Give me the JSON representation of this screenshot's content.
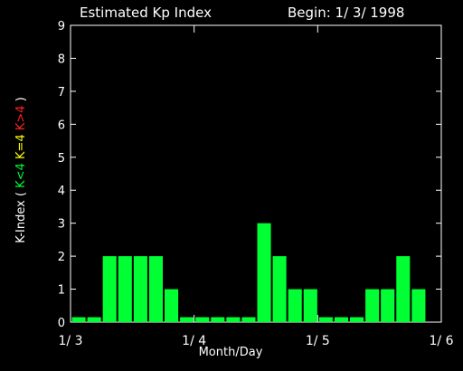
{
  "colors": {
    "background": "#000000",
    "axis": "#ffffff",
    "text": "#ffffff",
    "bar": "#00ff33",
    "legend_low": "#00ff33",
    "legend_mid": "#ffff00",
    "legend_high": "#ff2222"
  },
  "chart_data": {
    "type": "bar",
    "title": "Estimated Kp Index",
    "subtitle": "Begin: 1/ 3/ 1998",
    "xlabel": "Month/Day",
    "ylabel": {
      "prefix": "K-Index (",
      "low": "K<4",
      "mid": "K=4",
      "high": "K>4",
      "suffix": ")"
    },
    "ylim": [
      0,
      9
    ],
    "yticks": [
      "0",
      "1",
      "2",
      "3",
      "4",
      "5",
      "6",
      "7",
      "8",
      "9"
    ],
    "xticks": [
      "1/ 3",
      "1/ 4",
      "1/ 5",
      "1/ 6"
    ],
    "bars_per_day": 8,
    "days": 3,
    "values": [
      0.15,
      0.15,
      2,
      2,
      2,
      2,
      1,
      0.15,
      0.15,
      0.15,
      0.15,
      0.15,
      3,
      2,
      1,
      1,
      0.15,
      0.15,
      0.15,
      1,
      1,
      2,
      1,
      0
    ]
  }
}
